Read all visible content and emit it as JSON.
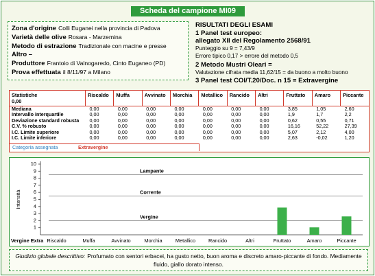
{
  "header": {
    "title": "Scheda del campione MI09"
  },
  "sample_info": [
    {
      "label": "Zona d'origine",
      "value": "Colli Euganei nella provincia di Padova"
    },
    {
      "label": "Varietà delle olive",
      "value": "Rosara - Marzemina"
    },
    {
      "label": "Metodo di estrazione",
      "value": "Tradizionale con macine e presse"
    },
    {
      "label": "Altro –"
    },
    {
      "label": "Produttore",
      "value": "Frantoio di Valnogaredo, Cinto Euganeo (PD)"
    },
    {
      "label": "Prova effettuata",
      "value": "il 8/11/97 a Milano"
    }
  ],
  "results": {
    "title": "RISULTATI DEGLI ESAMI",
    "lines": [
      {
        "text": "1 Panel test europeo:",
        "bold": true
      },
      {
        "text": "allegato XII del Regolamento 2568/91",
        "bold": true
      },
      {
        "text": "Punteggio su 9 = 7,43/9",
        "bold": false
      },
      {
        "text": "Errore tipico 0,17 > errore del metodo 0,5",
        "bold": false
      },
      {
        "text": "2 Metodo Mustri Oleari =",
        "bold": true
      },
      {
        "text": "Valutazione cifrata media 11,62/15 = da buono a molto buono",
        "bold": false
      },
      {
        "text": "3 Panel test COI/T.20/Doc. n 15 = Extravergine",
        "bold": true
      }
    ]
  },
  "table": {
    "corner": [
      "Statistiche",
      "0,00"
    ],
    "columns": [
      "Riscaldo",
      "Muffa",
      "Avvinato",
      "Morchia",
      "Metallico",
      "Rancido",
      "Altri",
      "Fruttato",
      "Amaro",
      "Piccante"
    ],
    "rows": [
      {
        "label": "Mediana",
        "cells": [
          "0,00",
          "0,00",
          "0,00",
          "0,00",
          "0,00",
          "0,00",
          "0,00",
          "3,85",
          "1,05",
          "2,60"
        ]
      },
      {
        "label": "Intervallo interquartile",
        "cells": [
          "0,00",
          "0,00",
          "0,00",
          "0,00",
          "0,00",
          "0,00",
          "0,00",
          "1,9",
          "1,7",
          "2,2"
        ]
      },
      {
        "label": "Deviazione standard robusta",
        "cells": [
          "0,00",
          "0,00",
          "0,00",
          "0,00",
          "0,00",
          "0,00",
          "0,00",
          "0,62",
          "0,55",
          "0,71"
        ]
      },
      {
        "label": "C.V. % robusto",
        "cells": [
          "0,00",
          "0,00",
          "0,00",
          "0,00",
          "0,00",
          "0,00",
          "0,00",
          "16,16",
          "52,22",
          "27,39"
        ]
      },
      {
        "label": "I.C. Limite superiore",
        "cells": [
          "0,00",
          "0,00",
          "0,00",
          "0,00",
          "0,00",
          "0,00",
          "0,00",
          "5,07",
          "2,12",
          "4,00"
        ]
      },
      {
        "label": "I.C. Limite inferiore",
        "cells": [
          "0,00",
          "0,00",
          "0,00",
          "0,00",
          "0,00",
          "0,00",
          "0,00",
          "2,63",
          "-0,02",
          "1,20"
        ]
      }
    ],
    "category": {
      "label": "Categoria assegnata",
      "value": "Extravergine"
    }
  },
  "chart_data": {
    "type": "bar",
    "y_label": "Intensità",
    "categories": [
      "Riscaldo",
      "Muffa",
      "Avvinato",
      "Morchia",
      "Metallico",
      "Rancido",
      "Altri",
      "Fruttato",
      "Amaro",
      "Piccante"
    ],
    "values": [
      0,
      0,
      0,
      0,
      0,
      0,
      0,
      3.85,
      1.05,
      2.6
    ],
    "color": "#3cb04a",
    "ylim": [
      0,
      10
    ],
    "yticks": [
      1,
      2,
      3,
      4,
      5,
      6,
      7,
      8,
      9,
      10
    ],
    "annotations": [
      {
        "text": "Lampante",
        "y": 8.5
      },
      {
        "text": "Corrente",
        "y": 5.5
      },
      {
        "text": "Vergine",
        "y": 2
      },
      {
        "text": "Vergine Extra",
        "y": 0
      }
    ]
  },
  "judgement": {
    "label": "Giudizio globale descrittivo:",
    "text": "Profumato con sentori erbacei, ha gusto netto, buon aroma e discreto amaro-piccante di fondo. Mediamente fluido, giallo dorato intenso."
  }
}
